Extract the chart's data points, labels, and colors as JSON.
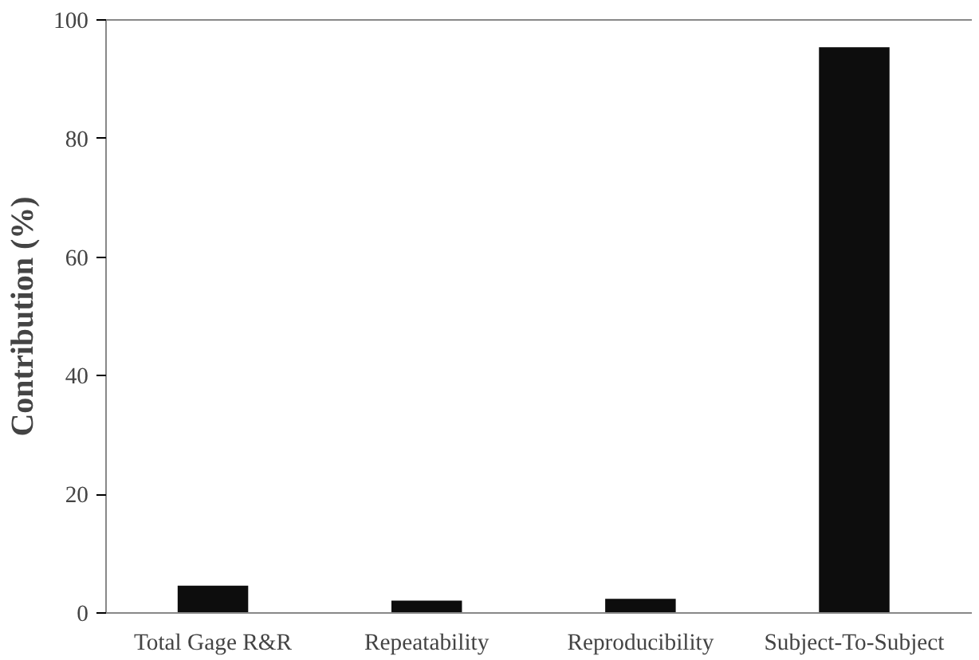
{
  "chart_data": {
    "type": "bar",
    "ylabel": "Contribution (%)",
    "categories": [
      "Total Gage R&R",
      "Repeatability",
      "Reproducibility",
      "Subject-To-Subject"
    ],
    "values": [
      4.6,
      2.1,
      2.4,
      95.4
    ],
    "color": "#0d0d0d",
    "ylim": [
      0,
      100
    ],
    "yticks": [
      0,
      20,
      40,
      60,
      80,
      100
    ],
    "grid": false
  }
}
